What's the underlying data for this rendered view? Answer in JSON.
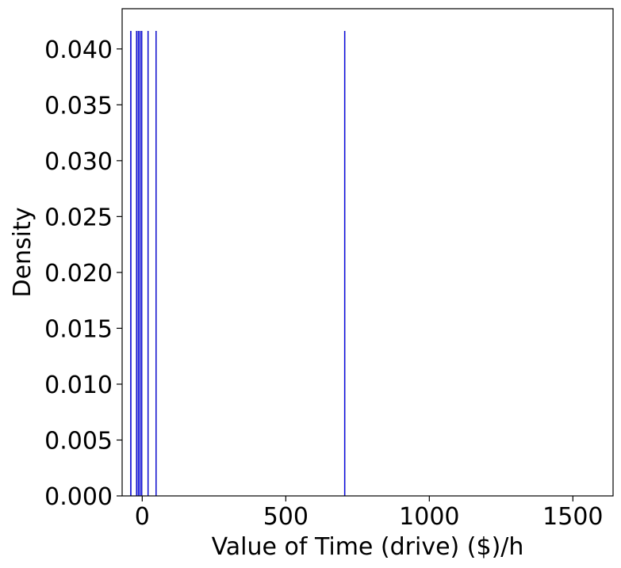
{
  "chart_data": {
    "type": "histogram",
    "title": "",
    "xlabel": "Value of Time (drive) ($)/h",
    "ylabel": "Density",
    "xlim": [
      -70,
      1640
    ],
    "ylim": [
      0,
      0.0436
    ],
    "x_ticks": [
      {
        "value": 0,
        "label": "0"
      },
      {
        "value": 500,
        "label": "500"
      },
      {
        "value": 1000,
        "label": "1000"
      },
      {
        "value": 1500,
        "label": "1500"
      }
    ],
    "y_ticks": [
      {
        "value": 0.0,
        "label": "0.000"
      },
      {
        "value": 0.005,
        "label": "0.005"
      },
      {
        "value": 0.01,
        "label": "0.010"
      },
      {
        "value": 0.015,
        "label": "0.015"
      },
      {
        "value": 0.02,
        "label": "0.020"
      },
      {
        "value": 0.025,
        "label": "0.025"
      },
      {
        "value": 0.03,
        "label": "0.030"
      },
      {
        "value": 0.035,
        "label": "0.035"
      },
      {
        "value": 0.04,
        "label": "0.040"
      }
    ],
    "series": [
      {
        "color": "#0000ff",
        "outline_color": "#000080",
        "bars": [
          {
            "x": -40,
            "density": 0.0416
          },
          {
            "x": -20,
            "density": 0.0416
          },
          {
            "x": -14,
            "density": 0.0416
          },
          {
            "x": -8,
            "density": 0.0416
          },
          {
            "x": -2,
            "density": 0.0416
          },
          {
            "x": 20,
            "density": 0.0416
          },
          {
            "x": 48,
            "density": 0.0416
          },
          {
            "x": 705,
            "density": 0.0416
          }
        ]
      }
    ],
    "grid": false,
    "legend": false
  }
}
